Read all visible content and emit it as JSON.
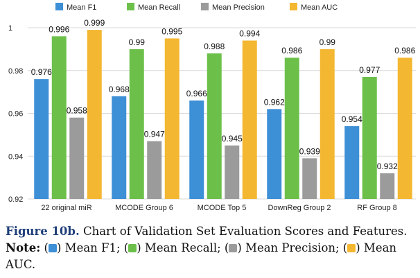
{
  "chart_data": {
    "type": "bar",
    "categories": [
      "22 original miR",
      "MCODE Group 6",
      "MCODE Top 5",
      "DownReg Group 2",
      "RF Group 8"
    ],
    "series": [
      {
        "name": "Mean F1",
        "color": "#3d8fd6",
        "values": [
          0.976,
          0.968,
          0.966,
          0.962,
          0.954
        ]
      },
      {
        "name": "Mean Recall",
        "color": "#6cc04a",
        "values": [
          0.996,
          0.99,
          0.988,
          0.986,
          0.977
        ]
      },
      {
        "name": "Mean Precision",
        "color": "#9b9b9b",
        "values": [
          0.958,
          0.947,
          0.945,
          0.939,
          0.932
        ]
      },
      {
        "name": "Mean AUC",
        "color": "#f4b731",
        "values": [
          0.999,
          0.995,
          0.994,
          0.99,
          0.986
        ]
      }
    ],
    "ylim": [
      0.92,
      1.0
    ],
    "yticks": [
      "0.92",
      "0.94",
      "0.96",
      "0.98",
      "1"
    ],
    "grid": true,
    "legend": "top"
  },
  "caption": {
    "figure": "Figure 10b.",
    "text": " Chart of Validation Set Evaluation Scores and Features. ",
    "note": "Note:",
    "items": [
      {
        "pre": " (",
        "post": ") Mean F1;"
      },
      {
        "pre": " (",
        "post": ") Mean Recall;"
      },
      {
        "pre": " (",
        "post": ") Mean Precision;"
      },
      {
        "pre": " (",
        "post": ") Mean AUC."
      }
    ]
  }
}
